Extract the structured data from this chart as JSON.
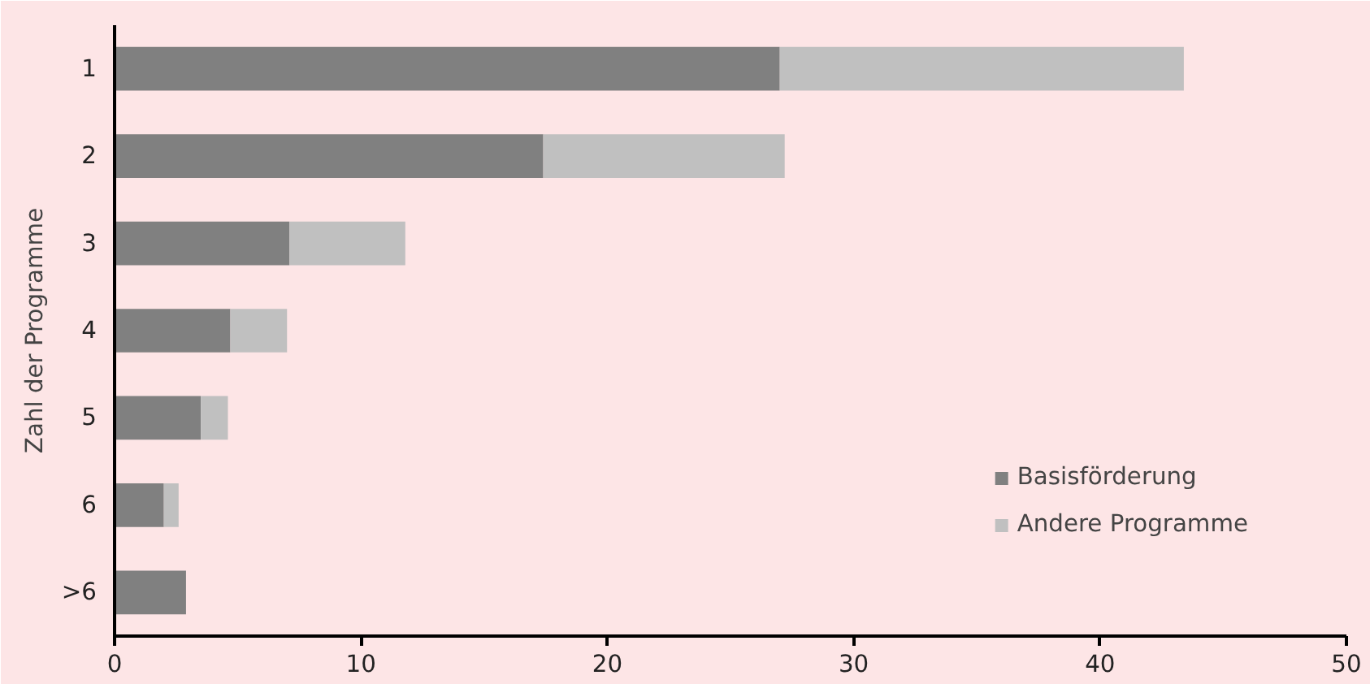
{
  "chart_data": {
    "type": "bar",
    "orientation": "horizontal",
    "stacked": true,
    "ylabel": "Zahl der Programme",
    "categories": [
      "1",
      "2",
      "3",
      "4",
      "5",
      "6",
      ">6"
    ],
    "series": [
      {
        "name": "Basisförderung",
        "color": "#808080",
        "values": [
          27.0,
          17.4,
          7.1,
          4.7,
          3.5,
          2.0,
          2.9
        ]
      },
      {
        "name": "Andere Programme",
        "color": "#c0c0c0",
        "values": [
          16.4,
          9.8,
          4.7,
          2.3,
          1.1,
          0.6,
          0
        ]
      }
    ],
    "xlim": [
      0,
      50
    ],
    "xticks": [
      0,
      10,
      20,
      30,
      40,
      50
    ],
    "grid": false,
    "legend": "bottom right"
  }
}
